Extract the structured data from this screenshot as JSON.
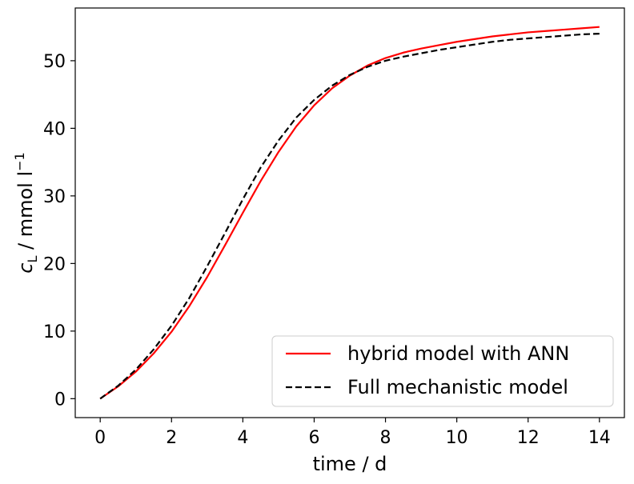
{
  "chart_data": {
    "type": "line",
    "xlabel": "time / d",
    "ylabel_parts": {
      "symbol": "c",
      "subscript": "L",
      "units": " / mmol l",
      "exponent": "−1"
    },
    "xlim": [
      -0.7,
      14.7
    ],
    "ylim": [
      -2.8,
      57.8
    ],
    "xticks": [
      0,
      2,
      4,
      6,
      8,
      10,
      12,
      14
    ],
    "yticks": [
      0,
      10,
      20,
      30,
      40,
      50
    ],
    "grid": false,
    "legend": "lower-right",
    "series": [
      {
        "name": "hybrid model with ANN",
        "color": "#ff0000",
        "style": "solid",
        "x": [
          0,
          0.5,
          1,
          1.5,
          2,
          2.5,
          3,
          3.5,
          4,
          4.5,
          5,
          5.5,
          6,
          6.5,
          7,
          7.5,
          8,
          8.5,
          9,
          9.5,
          10,
          10.5,
          11,
          11.5,
          12,
          12.5,
          13,
          13.5,
          14
        ],
        "y": [
          0,
          1.8,
          4.0,
          6.7,
          9.9,
          13.7,
          18.0,
          22.7,
          27.5,
          32.2,
          36.5,
          40.3,
          43.4,
          45.9,
          47.8,
          49.3,
          50.4,
          51.2,
          51.8,
          52.3,
          52.8,
          53.2,
          53.6,
          53.9,
          54.2,
          54.4,
          54.6,
          54.8,
          55.0
        ]
      },
      {
        "name": "Full mechanistic model",
        "color": "#000000",
        "style": "dashed",
        "x": [
          0,
          0.5,
          1,
          1.5,
          2,
          2.5,
          3,
          3.5,
          4,
          4.5,
          5,
          5.5,
          6,
          6.5,
          7,
          7.5,
          8,
          8.5,
          9,
          9.5,
          10,
          10.5,
          11,
          11.5,
          12,
          12.5,
          13,
          13.5,
          14
        ],
        "y": [
          0,
          1.9,
          4.3,
          7.3,
          10.8,
          14.9,
          19.6,
          24.5,
          29.5,
          34.2,
          38.2,
          41.6,
          44.2,
          46.3,
          47.9,
          49.1,
          50.0,
          50.6,
          51.1,
          51.6,
          52.0,
          52.4,
          52.8,
          53.1,
          53.3,
          53.5,
          53.7,
          53.9,
          54.0
        ]
      }
    ]
  }
}
